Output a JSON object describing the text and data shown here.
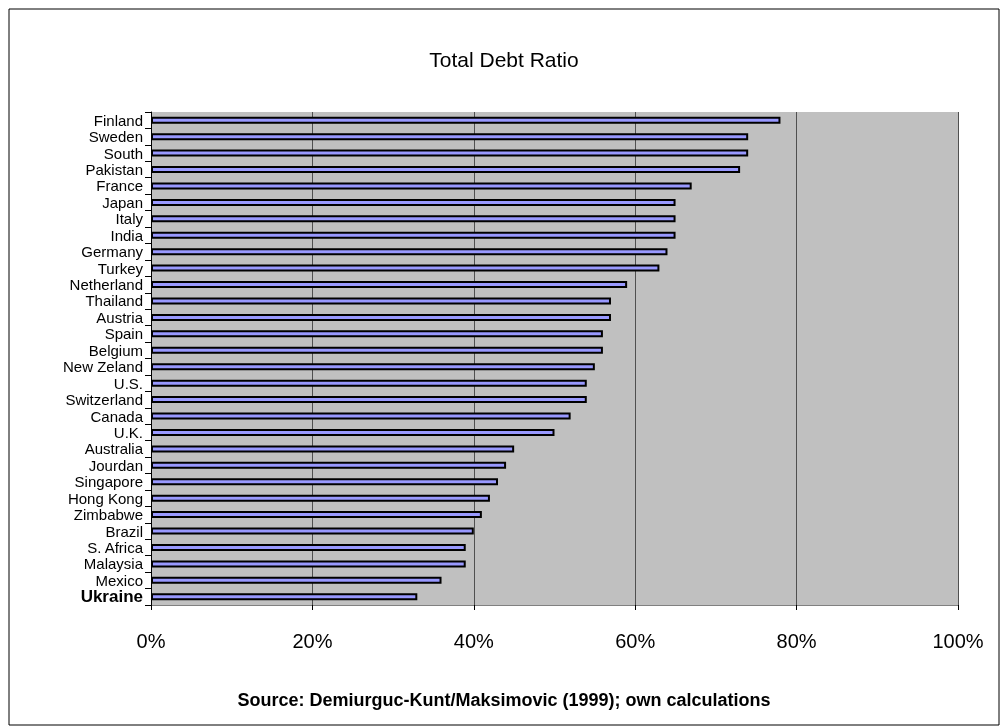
{
  "chart_data": {
    "type": "bar",
    "orientation": "horizontal",
    "title": "Total Debt Ratio",
    "categories": [
      "Finland",
      "Sweden",
      "South",
      "Pakistan",
      "France",
      "Japan",
      "Italy",
      "India",
      "Germany",
      "Turkey",
      "Netherland",
      "Thailand",
      "Austria",
      "Spain",
      "Belgium",
      "New Zeland",
      "U.S.",
      "Switzerland",
      "Canada",
      "U.K.",
      "Australia",
      "Jourdan",
      "Singapore",
      "Hong Kong",
      "Zimbabwe",
      "Brazil",
      "S. Africa",
      "Malaysia",
      "Mexico",
      "Ukraine"
    ],
    "values": [
      78,
      74,
      74,
      73,
      67,
      65,
      65,
      65,
      64,
      63,
      59,
      57,
      57,
      56,
      56,
      55,
      54,
      54,
      52,
      50,
      45,
      44,
      43,
      42,
      41,
      40,
      39,
      39,
      36,
      33
    ],
    "color": "#9999ff",
    "xlim": [
      0,
      100
    ],
    "xticks": [
      {
        "value": 0,
        "label": "0%"
      },
      {
        "value": 20,
        "label": "20%"
      },
      {
        "value": 40,
        "label": "40%"
      },
      {
        "value": 60,
        "label": "60%"
      },
      {
        "value": 80,
        "label": "80%"
      },
      {
        "value": 100,
        "label": "100%"
      }
    ],
    "grid": "x",
    "annotations": [
      "Source: Demiurguc-Kunt/Maksimovic (1999); own calculations"
    ]
  }
}
